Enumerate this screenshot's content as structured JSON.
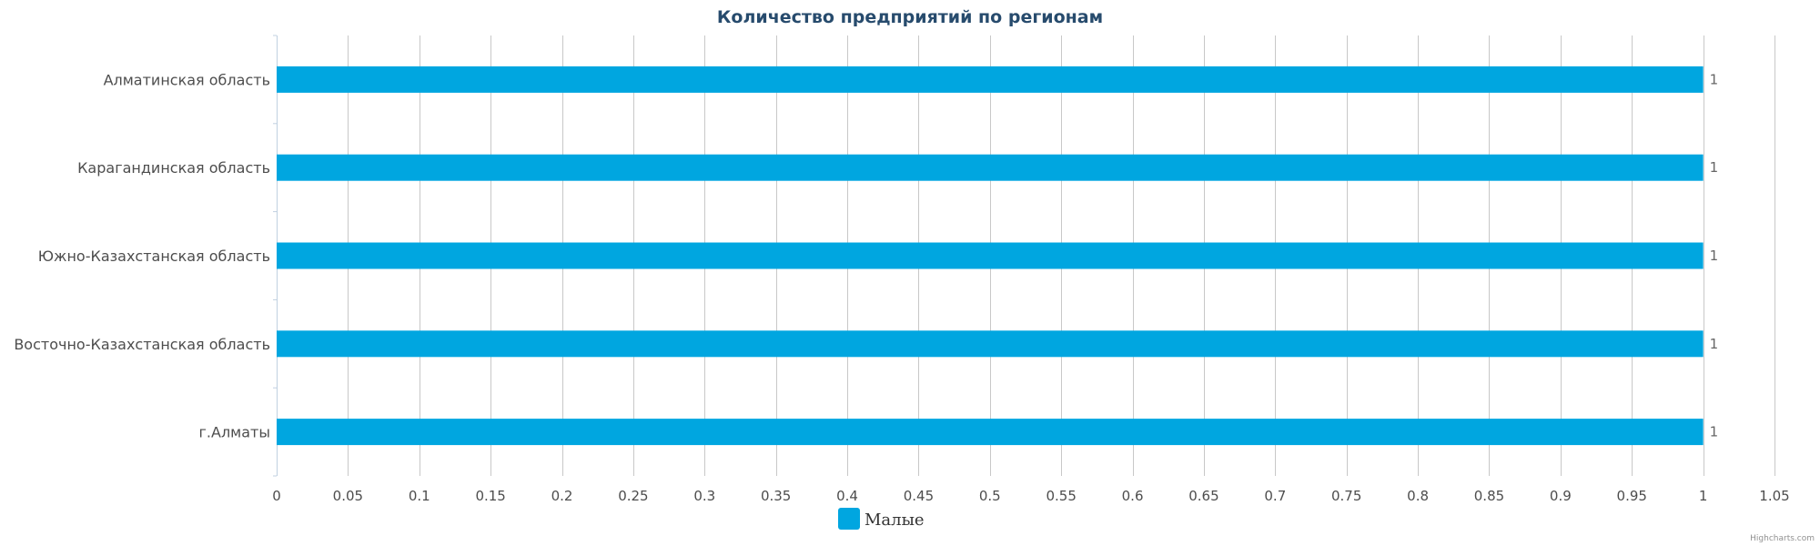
{
  "chart_data": {
    "type": "bar",
    "orientation": "horizontal",
    "title": "Количество предприятий по регионам",
    "categories": [
      "Алматинская область",
      "Карагандинская область",
      "Южно-Казахстанская область",
      "Восточно-Казахстанская область",
      "г.Алматы"
    ],
    "series": [
      {
        "name": "Малые",
        "values": [
          1,
          1,
          1,
          1,
          1
        ],
        "color": "#00a6e0"
      }
    ],
    "xlim": [
      0,
      1.05
    ],
    "x_tick_step": 0.05,
    "x_tick_labels": [
      "0",
      "0.05",
      "0.1",
      "0.15",
      "0.2",
      "0.25",
      "0.3",
      "0.35",
      "0.4",
      "0.45",
      "0.5",
      "0.55",
      "0.6",
      "0.65",
      "0.7",
      "0.75",
      "0.8",
      "0.85",
      "0.9",
      "0.95",
      "1",
      "1.05"
    ],
    "data_labels": [
      "1",
      "1",
      "1",
      "1",
      "1"
    ],
    "grid": true,
    "grid_color": "#c8c8c8",
    "legend_position": "bottom-center",
    "title_color": "#274b6d"
  },
  "credits": "Highcharts.com"
}
